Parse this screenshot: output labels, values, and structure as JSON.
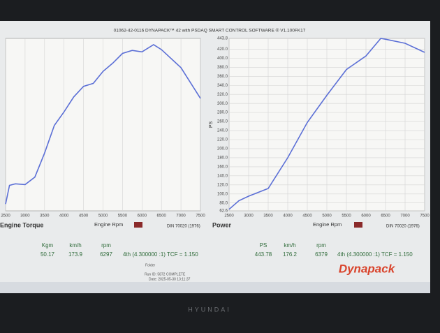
{
  "header": {
    "title": "01062-42-0116 DYNAPACK™ 42 with PSDAQ SMART CONTROL SOFTWARE ® V1.100FK17"
  },
  "chart_data": [
    {
      "type": "line",
      "title": "Engine Torque",
      "x_label": "Engine Rpm",
      "standard": "DIN 70020 (1976)",
      "x": [
        2500,
        2600,
        2750,
        3000,
        3250,
        3500,
        3750,
        4000,
        4250,
        4500,
        4750,
        5000,
        5250,
        5500,
        5750,
        6000,
        6297,
        6500,
        7000,
        7500
      ],
      "values": [
        28.9,
        31.4,
        31.6,
        31.5,
        32.5,
        35.7,
        39.4,
        41.2,
        43.2,
        44.6,
        45.0,
        46.6,
        47.7,
        49.0,
        49.4,
        49.2,
        50.17,
        49.5,
        47.1,
        43.0
      ],
      "color": "#5b6fd6",
      "xlim": [
        2500,
        7500
      ],
      "ylim": [
        28,
        51
      ],
      "xticks": [
        2500,
        3000,
        3500,
        4000,
        4500,
        5000,
        5500,
        6000,
        6500,
        7000,
        7500
      ],
      "grid": true
    },
    {
      "type": "line",
      "title": "Power",
      "x_label": "Engine Rpm",
      "standard": "DIN 70020 (1976)",
      "ylabel": "PS",
      "x": [
        2500,
        2750,
        3000,
        3500,
        4000,
        4500,
        5000,
        5500,
        6000,
        6379,
        6500,
        7000,
        7500
      ],
      "values": [
        66,
        85,
        95,
        112,
        180,
        258,
        318,
        375,
        405,
        443.78,
        442,
        433,
        413
      ],
      "color": "#5b6fd6",
      "xlim": [
        2500,
        7500
      ],
      "ylim": [
        62.6,
        443.8
      ],
      "xticks": [
        2500,
        3000,
        3500,
        4000,
        4500,
        5000,
        5500,
        6000,
        6500,
        7000,
        7500
      ],
      "yticks": [
        62.6,
        {
          "value": 80,
          "label": "80.0"
        },
        {
          "value": 100,
          "label": "100.0"
        },
        {
          "value": 120,
          "label": "120.0"
        },
        {
          "value": 140,
          "label": "140.0"
        },
        {
          "value": 160,
          "label": "160.0"
        },
        {
          "value": 180,
          "label": "180.0"
        },
        {
          "value": 200,
          "label": "200.0"
        },
        {
          "value": 220,
          "label": "220.0"
        },
        {
          "value": 240,
          "label": "240.0"
        },
        {
          "value": 260,
          "label": "260.0"
        },
        {
          "value": 280,
          "label": "280.0"
        },
        {
          "value": 300,
          "label": "300.0"
        },
        {
          "value": 320,
          "label": "320.0"
        },
        {
          "value": 340,
          "label": "340.0"
        },
        {
          "value": 360,
          "label": "360.0"
        },
        {
          "value": 380,
          "label": "380.0"
        },
        {
          "value": 400,
          "label": "400.0"
        },
        {
          "value": 420,
          "label": "420.0"
        },
        443.8
      ],
      "grid": true
    }
  ],
  "readouts": [
    {
      "labels": [
        "Kgm",
        "km/h",
        "rpm"
      ],
      "values": [
        "50.17",
        "173.9",
        "6297"
      ],
      "gear": "4th (4.300000 :1) TCF = 1.150"
    },
    {
      "labels": [
        "PS",
        "km/h",
        "rpm"
      ],
      "values": [
        "443.78",
        "176.2",
        "6379"
      ],
      "gear": "4th (4.300000 :1) TCF = 1.150"
    }
  ],
  "footer": {
    "folder": "Folder",
    "run": "Run ID: 5872 COMPLETE",
    "date": "Date: 2025-05-30 13:11:37",
    "brand": "Dynapack",
    "monitor": "HYUNDAI"
  }
}
